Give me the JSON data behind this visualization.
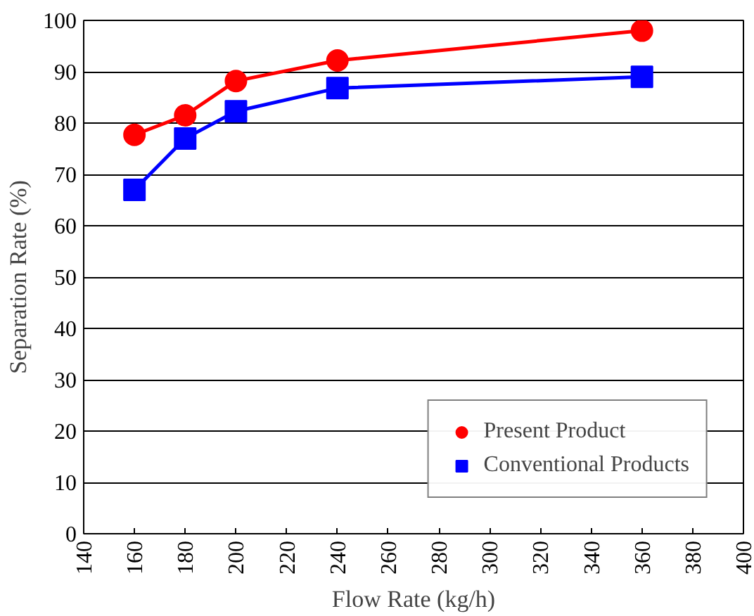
{
  "chart_data": {
    "type": "line",
    "xlabel": "Flow Rate (kg/h)",
    "ylabel": "Separation Rate (%)",
    "xlim": [
      140,
      400
    ],
    "xticks": [
      140,
      160,
      180,
      200,
      220,
      240,
      260,
      280,
      300,
      320,
      340,
      360,
      380,
      400
    ],
    "ylim": [
      0,
      100
    ],
    "yticks": [
      0,
      10,
      20,
      30,
      40,
      50,
      60,
      70,
      80,
      90,
      100
    ],
    "grid": "y",
    "legend": "bottom right",
    "series": [
      {
        "name": "Present Product",
        "color": "#ff0000",
        "marker": "circle",
        "x": [
          160,
          180,
          200,
          240,
          360
        ],
        "values": [
          77.7,
          81.5,
          88.2,
          92.2,
          98
        ]
      },
      {
        "name": "Conventional Products",
        "color": "#0000ff",
        "marker": "square",
        "x": [
          160,
          180,
          200,
          240,
          360
        ],
        "values": [
          67,
          77,
          82.3,
          86.8,
          89
        ]
      }
    ]
  }
}
